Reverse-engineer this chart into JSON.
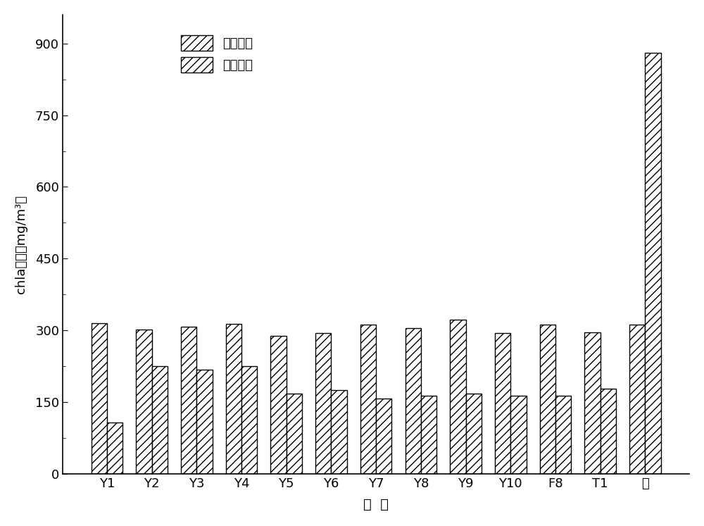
{
  "categories": [
    "Y1",
    "Y2",
    "Y3",
    "Y4",
    "Y5",
    "Y6",
    "Y7",
    "Y8",
    "Y9",
    "Y10",
    "F8",
    "T1",
    "空"
  ],
  "initial_values": [
    315,
    302,
    308,
    313,
    288,
    295,
    312,
    305,
    322,
    295,
    312,
    296,
    312
  ],
  "remaining_values": [
    108,
    225,
    218,
    225,
    168,
    175,
    158,
    163,
    168,
    163,
    163,
    178,
    880
  ],
  "ylabel": "chla含量（mg/m³）",
  "xlabel": "细  菌",
  "legend_initial": "初始含量",
  "legend_remaining": "剩余含量",
  "ylim": [
    0,
    960
  ],
  "yticks": [
    0,
    150,
    300,
    450,
    600,
    750,
    900
  ],
  "background_color": "#ffffff",
  "bar_color": "#ffffff",
  "hatch": "///",
  "edgecolor": "#000000",
  "bar_width": 0.35,
  "figsize": [
    10.0,
    7.47
  ],
  "dpi": 100
}
